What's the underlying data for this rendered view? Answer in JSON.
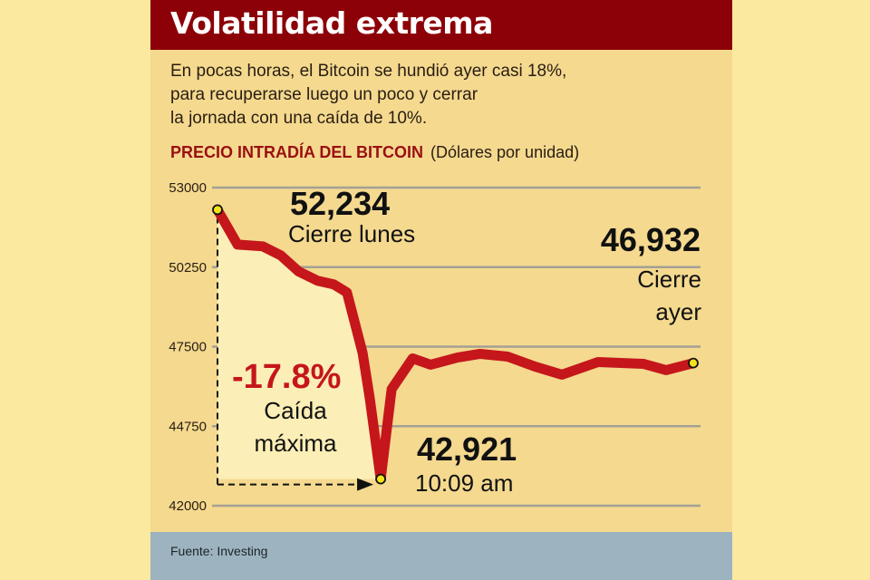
{
  "header": {
    "title": "Volatilidad extrema"
  },
  "subtitle": [
    "En pocas horas, el Bitcoin se hundió ayer casi 18%,",
    "para recuperarse luego un poco y cerrar",
    "la jornada con una caída de 10%."
  ],
  "footer": {
    "source": "Fuente: Investing"
  },
  "colors": {
    "header": "#8c0007",
    "line": "#c5161c",
    "marker": "#f5e21a",
    "panel": "#f4d98f",
    "footer": "#9db4c0"
  },
  "chart_data": {
    "type": "line",
    "title": "PRECIO INTRADÍA DEL BITCOIN",
    "units": "(Dólares por unidad)",
    "ylim": [
      42000,
      53000
    ],
    "yticks": [
      "53000",
      "50250",
      "47500",
      "44750",
      "42000"
    ],
    "grid": true,
    "x": [
      0,
      4.2,
      9.5,
      13.3,
      17.1,
      21,
      24.4,
      27.2,
      30.5,
      32,
      34.3,
      36.6,
      41,
      44.8,
      50.5,
      55.2,
      61,
      66.7,
      72.4,
      80,
      89.5,
      94.3,
      100
    ],
    "values": [
      52234,
      51031,
      50969,
      50656,
      50094,
      49781,
      49656,
      49375,
      47281,
      45719,
      42921,
      46031,
      47094,
      46875,
      47125,
      47250,
      47156,
      46812,
      46531,
      46969,
      46906,
      46688,
      46932
    ],
    "annotations": {
      "open": {
        "value": "52,234",
        "label": "Cierre lunes"
      },
      "low": {
        "value": "42,921",
        "label": "10:09 am"
      },
      "close": {
        "value": "46,932",
        "label1": "Cierre",
        "label2": "ayer"
      },
      "drop": {
        "value": "-17.8%",
        "label1": "Caída",
        "label2": "máxima"
      }
    }
  }
}
